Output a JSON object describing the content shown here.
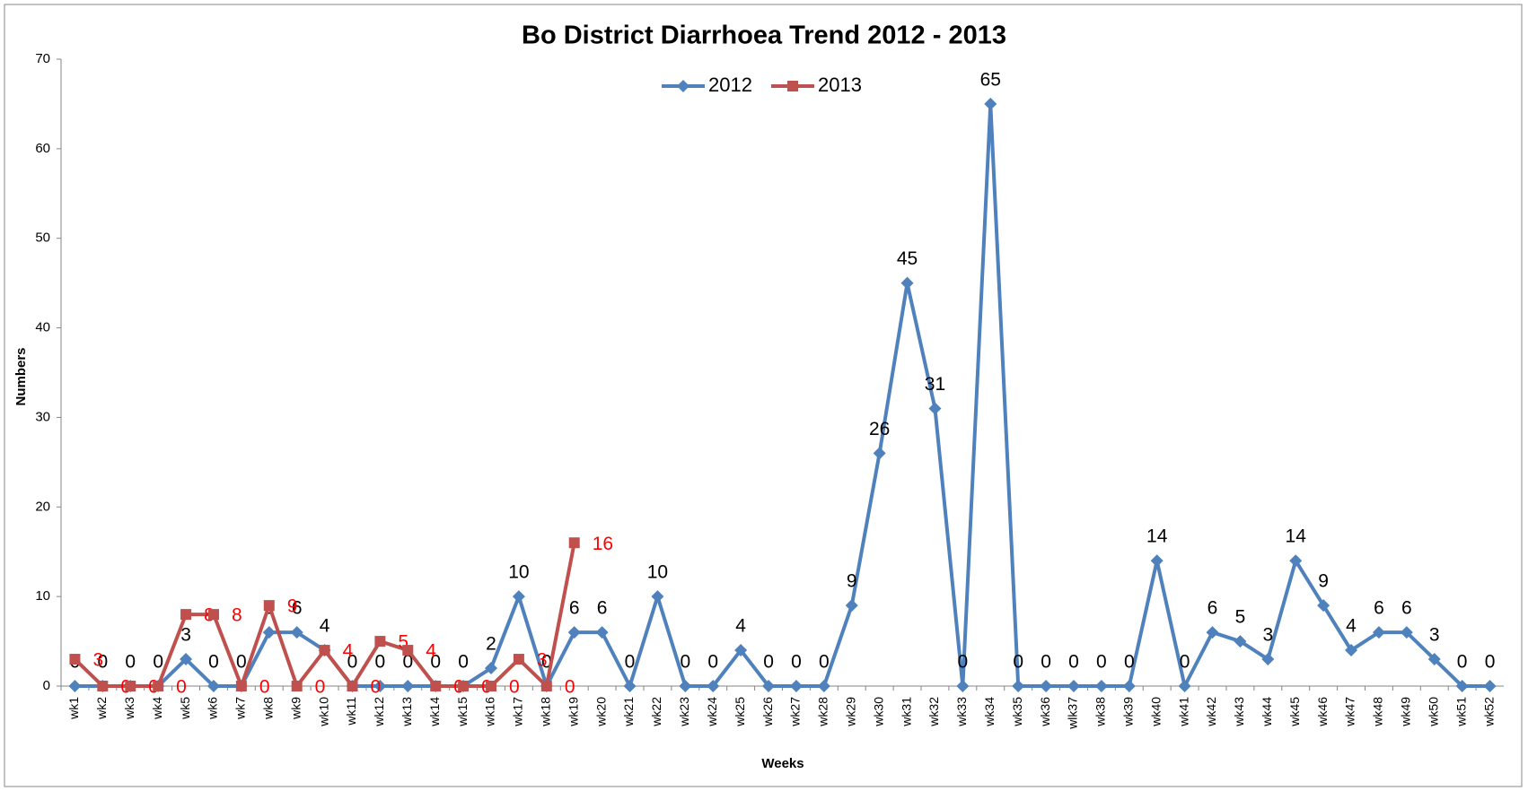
{
  "chart_data": {
    "type": "line",
    "title": "Bo District Diarrhoea Trend 2012 - 2013",
    "x_label": "Weeks",
    "y_label": "Numbers",
    "categories": [
      "wk1",
      "wk2",
      "wk3",
      "wk4",
      "wk5",
      "wk6",
      "wk7",
      "wk8",
      "wk9",
      "wk10",
      "wk11",
      "wk12",
      "wk13",
      "wk14",
      "wk15",
      "wk16",
      "wk17",
      "wk18",
      "wk19",
      "wk20",
      "wk21",
      "wk22",
      "wk23",
      "wk24",
      "wk25",
      "wk26",
      "wk27",
      "wk28",
      "wk29",
      "wk30",
      "wk31",
      "wk32",
      "wk33",
      "wk34",
      "wk35",
      "wk36",
      "wlk37",
      "wk38",
      "wk39",
      "wk40",
      "wk41",
      "wk42",
      "wk43",
      "wk44",
      "wk45",
      "wk46",
      "wk47",
      "wk48",
      "wk49",
      "wk50",
      "wk51",
      "wk52"
    ],
    "series": [
      {
        "name": "2012",
        "color": "#4f81bd",
        "marker": "diamond",
        "label_color": "#000000",
        "values": [
          0,
          0,
          0,
          0,
          3,
          0,
          0,
          6,
          6,
          4,
          0,
          0,
          0,
          0,
          0,
          2,
          10,
          0,
          6,
          6,
          0,
          10,
          0,
          0,
          4,
          0,
          0,
          0,
          9,
          26,
          45,
          31,
          0,
          65,
          0,
          0,
          0,
          0,
          0,
          14,
          0,
          6,
          5,
          3,
          14,
          9,
          4,
          6,
          6,
          3,
          0,
          0
        ]
      },
      {
        "name": "2013",
        "color": "#c0504d",
        "marker": "square",
        "label_color": "#ff0000",
        "values": [
          3,
          0,
          0,
          0,
          8,
          8,
          0,
          9,
          0,
          4,
          0,
          5,
          4,
          0,
          0,
          0,
          3,
          0,
          16,
          null,
          null,
          null,
          null,
          null,
          null,
          null,
          null,
          null,
          null,
          null,
          null,
          null,
          null,
          null,
          null,
          null,
          null,
          null,
          null,
          null,
          null,
          null,
          null,
          null,
          null,
          null,
          null,
          null,
          null,
          null,
          null,
          null
        ]
      }
    ],
    "ylim": [
      0,
      70
    ],
    "yticks": [
      0,
      10,
      20,
      30,
      40,
      50,
      60,
      70
    ],
    "grid": false,
    "legend": "top"
  }
}
